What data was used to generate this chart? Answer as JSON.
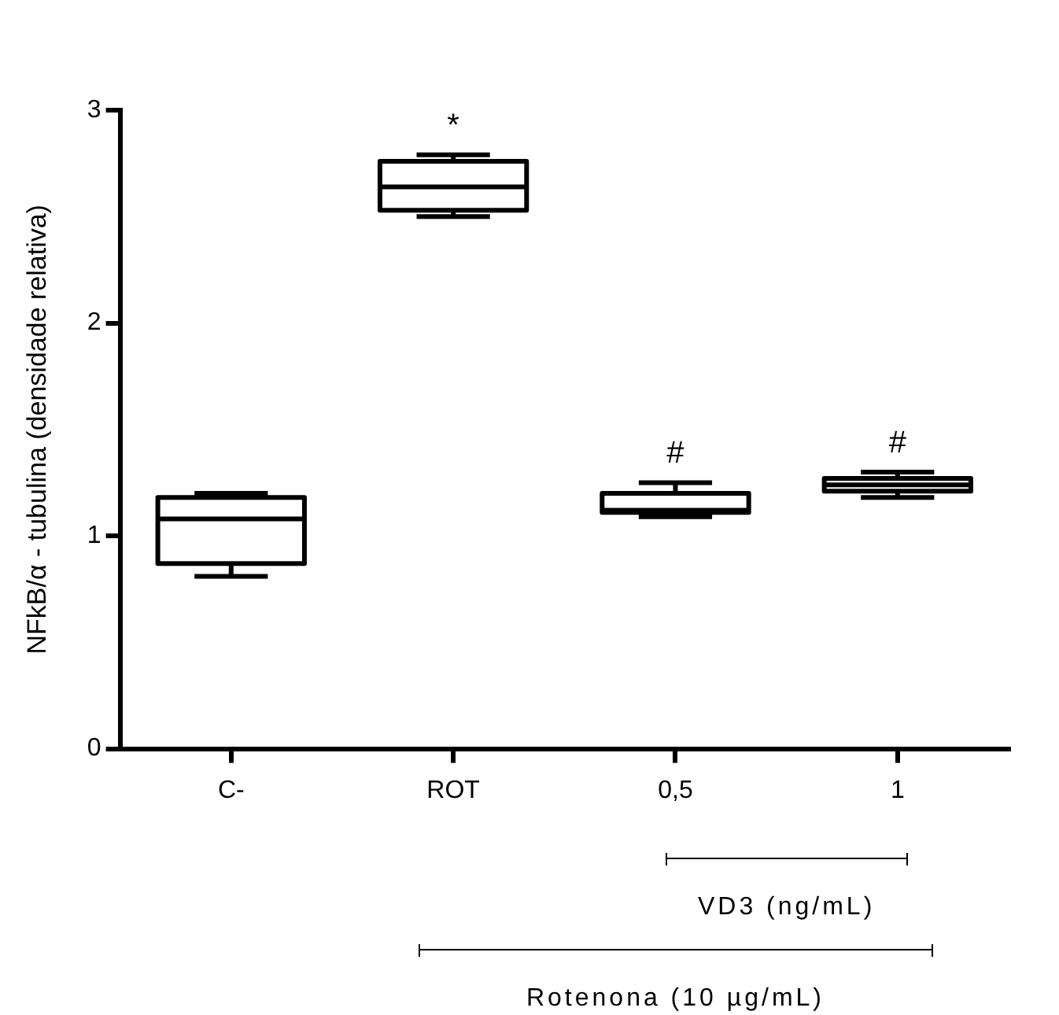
{
  "chart_data": {
    "type": "box",
    "ylabel": "NFkB/α - tubulina (densidade relativa)",
    "categories": [
      "C-",
      "ROT",
      "0,5",
      "1"
    ],
    "boxes": [
      {
        "low": 0.81,
        "q1": 0.87,
        "median": 1.08,
        "q3": 1.18,
        "high": 1.2
      },
      {
        "low": 2.5,
        "q1": 2.53,
        "median": 2.64,
        "q3": 2.76,
        "high": 2.79
      },
      {
        "low": 1.09,
        "q1": 1.11,
        "median": 1.12,
        "q3": 1.2,
        "high": 1.25
      },
      {
        "low": 1.18,
        "q1": 1.21,
        "median": 1.24,
        "q3": 1.27,
        "high": 1.3
      }
    ],
    "color": "#000000",
    "ylim": [
      0,
      3
    ],
    "yticks": [
      0,
      1,
      2,
      3
    ],
    "grid": false,
    "legend": false,
    "annotations": [
      "*",
      "#",
      "#",
      "VD3 (ng/mL)",
      "Rotenona (10 µg/mL)"
    ]
  }
}
